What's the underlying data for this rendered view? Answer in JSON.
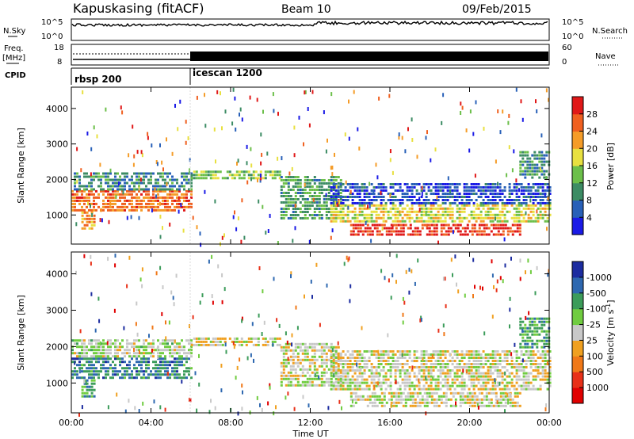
{
  "header": {
    "station": "Kapuskasing (fitACF)",
    "beam": "Beam 10",
    "date": "09/Feb/2015"
  },
  "status_panels": {
    "nsky_label": "N.Sky",
    "nsky_ticks": [
      "10^5",
      "10^0"
    ],
    "nsearch_label": "N.Search",
    "nsearch_ticks": [
      "10^5",
      "10^0"
    ],
    "freq_label": "Freq.",
    "freq_unit": "[MHz]",
    "freq_ticks": [
      "18",
      "8"
    ],
    "nave_label": "Nave",
    "nave_ticks": [
      "60",
      "0"
    ],
    "cpid_label": "CPID",
    "cpid_modes": [
      {
        "name": "rbsp 200",
        "start_hour": 0
      },
      {
        "name": "icescan 1200",
        "start_hour": 6
      }
    ]
  },
  "chart_data": [
    {
      "type": "heatmap",
      "quantity": "Power",
      "ylabel": "Slant Range [km]",
      "yticks": [
        1000,
        2000,
        3000,
        4000
      ],
      "ylim": [
        180,
        4600
      ],
      "xlim_hours": [
        0,
        24
      ],
      "colorbar": {
        "label": "Power [dB]",
        "ticks": [
          "4",
          "8",
          "12",
          "16",
          "20",
          "24",
          "28"
        ],
        "colors": [
          "#1a1ae6",
          "#2860b8",
          "#3c8c64",
          "#6cbf4a",
          "#e8e040",
          "#f59c28",
          "#f06020",
          "#e01818"
        ]
      },
      "regions": [
        {
          "t": [
            0.0,
            6.0
          ],
          "r": [
            1100,
            1700
          ],
          "level": 0.78
        },
        {
          "t": [
            0.0,
            6.0
          ],
          "r": [
            1700,
            2200
          ],
          "level": 0.3
        },
        {
          "t": [
            0.5,
            1.2
          ],
          "r": [
            600,
            1100
          ],
          "level": 0.7
        },
        {
          "t": [
            6.0,
            10.5
          ],
          "r": [
            2050,
            2250
          ],
          "level": 0.45
        },
        {
          "t": [
            10.5,
            13.5
          ],
          "r": [
            900,
            2100
          ],
          "level": 0.35
        },
        {
          "t": [
            13.0,
            24.0
          ],
          "r": [
            850,
            1300
          ],
          "level": 0.55
        },
        {
          "t": [
            14.0,
            22.5
          ],
          "r": [
            400,
            750
          ],
          "level": 0.9
        },
        {
          "t": [
            13.0,
            24.0
          ],
          "r": [
            1300,
            1900
          ],
          "level": 0.15
        },
        {
          "t": [
            22.5,
            24.0
          ],
          "r": [
            2000,
            2800
          ],
          "level": 0.3
        }
      ]
    },
    {
      "type": "heatmap",
      "quantity": "Velocity",
      "ylabel": "Slant Range [km]",
      "yticks": [
        1000,
        2000,
        3000,
        4000
      ],
      "ylim": [
        180,
        4600
      ],
      "xlim_hours": [
        0,
        24
      ],
      "xlabel": "Time UT",
      "xticks": [
        "00:00",
        "04:00",
        "08:00",
        "12:00",
        "16:00",
        "20:00",
        "00:00"
      ],
      "colorbar": {
        "label": "Velocity [m s^-1]",
        "ticks": [
          "1000",
          "500",
          "100",
          "25",
          "-25",
          "-100",
          "-500",
          "-1000"
        ],
        "colors": [
          "#1c2ca0",
          "#2e68b0",
          "#3c9c5a",
          "#70cc40",
          "#c8c8c8",
          "#f0a020",
          "#f07818",
          "#e83018",
          "#e00000"
        ]
      },
      "regions": [
        {
          "t": [
            0.0,
            6.0
          ],
          "r": [
            1100,
            1700
          ],
          "level": 0.22
        },
        {
          "t": [
            0.0,
            6.0
          ],
          "r": [
            1700,
            2200
          ],
          "level": 0.45
        },
        {
          "t": [
            0.5,
            1.2
          ],
          "r": [
            600,
            1100
          ],
          "level": 0.28
        },
        {
          "t": [
            6.0,
            10.5
          ],
          "r": [
            2050,
            2250
          ],
          "level": 0.5
        },
        {
          "t": [
            10.5,
            13.5
          ],
          "r": [
            900,
            2100
          ],
          "level": 0.5
        },
        {
          "t": [
            13.0,
            24.0
          ],
          "r": [
            850,
            1300
          ],
          "level": 0.5
        },
        {
          "t": [
            14.0,
            22.5
          ],
          "r": [
            400,
            750
          ],
          "level": 0.5
        },
        {
          "t": [
            13.0,
            24.0
          ],
          "r": [
            1300,
            1900
          ],
          "level": 0.5
        },
        {
          "t": [
            22.5,
            24.0
          ],
          "r": [
            2000,
            2800
          ],
          "level": 0.3
        }
      ]
    }
  ]
}
